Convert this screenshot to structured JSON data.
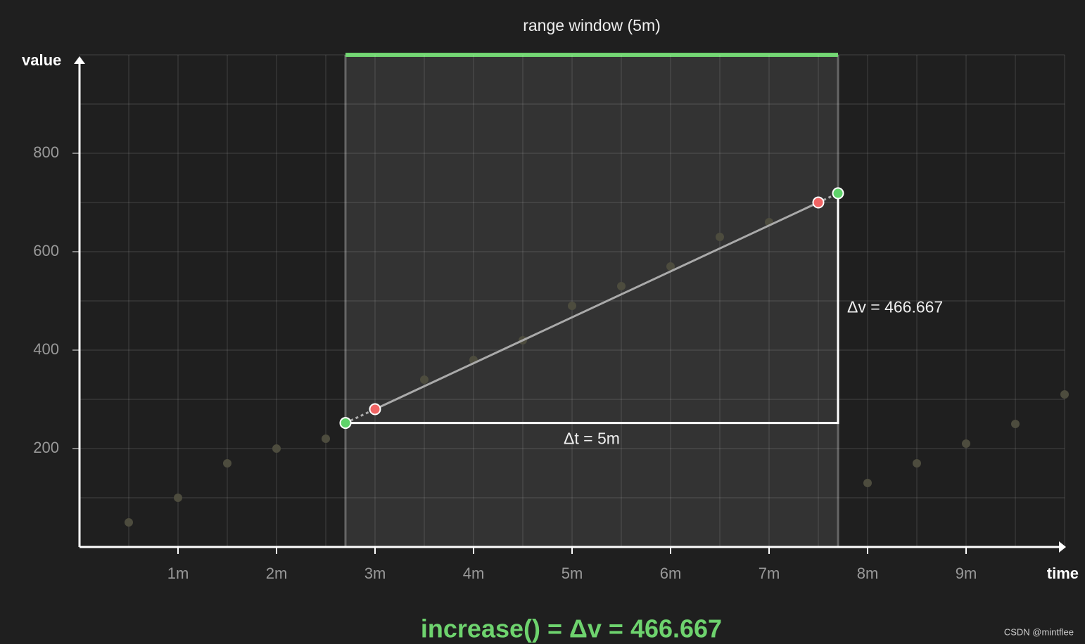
{
  "chart_data": {
    "type": "scatter",
    "xlabel": "time",
    "ylabel": "value",
    "xlim": [
      0,
      10
    ],
    "ylim": [
      0,
      1000
    ],
    "xticks": [
      {
        "value": 1,
        "label": "1m"
      },
      {
        "value": 2,
        "label": "2m"
      },
      {
        "value": 3,
        "label": "3m"
      },
      {
        "value": 4,
        "label": "4m"
      },
      {
        "value": 5,
        "label": "5m"
      },
      {
        "value": 6,
        "label": "6m"
      },
      {
        "value": 7,
        "label": "7m"
      },
      {
        "value": 8,
        "label": "8m"
      },
      {
        "value": 9,
        "label": "9m"
      }
    ],
    "yticks": [
      200,
      400,
      600,
      800
    ],
    "grid": true,
    "xgrid": [
      0.5,
      1,
      1.5,
      2,
      2.5,
      3,
      3.5,
      4,
      4.5,
      5,
      5.5,
      6,
      6.5,
      7,
      7.5,
      8,
      8.5,
      9,
      9.5,
      10
    ],
    "ygrid": [
      100,
      200,
      300,
      400,
      500,
      600,
      700,
      800,
      900,
      1000
    ],
    "series": [
      {
        "color": "#4d4c3e",
        "x": [
          0.5,
          1,
          1.5,
          2,
          2.5,
          3.5,
          4,
          4.5,
          5,
          5.5,
          6,
          6.5,
          7,
          8,
          8.5,
          9,
          9.5,
          10
        ],
        "values": [
          50,
          100,
          170,
          200,
          220,
          340,
          380,
          420,
          490,
          530,
          570,
          630,
          660,
          130,
          170,
          210,
          250,
          310
        ]
      },
      {
        "color": "#f06464",
        "x": [
          3,
          7.5
        ],
        "values": [
          280,
          700
        ]
      },
      {
        "color": "#5fd36a",
        "x": [
          2.7,
          7.7
        ],
        "values": [
          252,
          718.667
        ]
      }
    ],
    "window": {
      "range": [
        2.7,
        7.7
      ],
      "label": "range window (5m)",
      "color": "#6ed36e"
    },
    "dt_label": "Δt = 5m",
    "dv_label": "Δv = 466.667",
    "result": "increase() = Δv = 466.667",
    "watermark": "CSDN @mintflee"
  }
}
